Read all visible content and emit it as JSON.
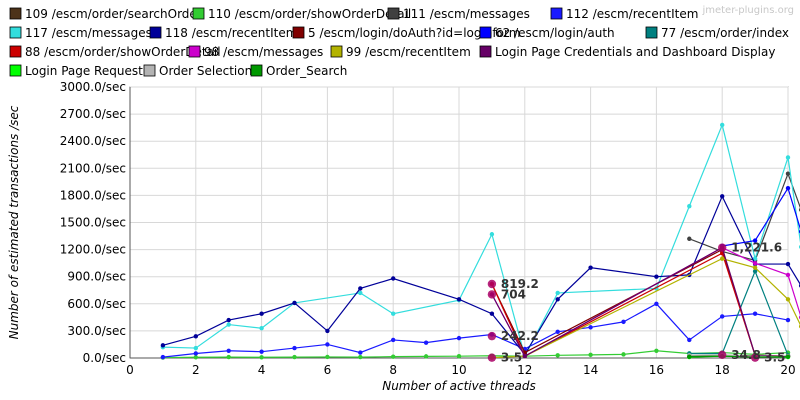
{
  "watermark": "jmeter-plugins.org",
  "chart_data": {
    "type": "line",
    "title": "",
    "xlabel": "Number of active threads",
    "ylabel": "Number of estimated transactions /sec",
    "xlim": [
      0,
      20
    ],
    "ylim": [
      0,
      3000
    ],
    "xticks": [
      0,
      2,
      4,
      6,
      8,
      10,
      12,
      14,
      16,
      18,
      20
    ],
    "xtick_labels": [
      "0",
      "2",
      "4",
      "6",
      "8",
      "10",
      "12",
      "14",
      "16",
      "18",
      "20"
    ],
    "yticks": [
      0,
      300,
      600,
      900,
      1200,
      1500,
      1800,
      2100,
      2400,
      2700,
      3000
    ],
    "ytick_labels": [
      "0.0/sec",
      "300.0/sec",
      "600.0/sec",
      "900.0/sec",
      "1200.0/sec",
      "1500.0/sec",
      "1800.0/sec",
      "2100.0/sec",
      "2400.0/sec",
      "2700.0/sec",
      "3000.0/sec"
    ],
    "grid": true,
    "legend_position": "top",
    "series": [
      {
        "name": "109 /escm/order/searchOrder",
        "color": "#4d3319",
        "points": [
          [
            17,
            20
          ],
          [
            18,
            30
          ],
          [
            19,
            25
          ],
          [
            20,
            20
          ]
        ]
      },
      {
        "name": "110 /escm/order/showOrderDetail",
        "color": "#33cc33",
        "points": [
          [
            1,
            5
          ],
          [
            2,
            8
          ],
          [
            3,
            10
          ],
          [
            4,
            8
          ],
          [
            5,
            10
          ],
          [
            6,
            12
          ],
          [
            7,
            10
          ],
          [
            8,
            15
          ],
          [
            9,
            18
          ],
          [
            10,
            20
          ],
          [
            11,
            25
          ],
          [
            12,
            20
          ],
          [
            13,
            30
          ],
          [
            14,
            35
          ],
          [
            15,
            40
          ],
          [
            16,
            80
          ],
          [
            17,
            50
          ],
          [
            18,
            60
          ],
          [
            19,
            40
          ],
          [
            20,
            60
          ]
        ]
      },
      {
        "name": "111 /escm/messages",
        "color": "#404040",
        "points": [
          [
            17,
            1320
          ],
          [
            18,
            1180
          ],
          [
            19,
            1080
          ],
          [
            20,
            2040
          ],
          [
            20.4,
            1640
          ]
        ]
      },
      {
        "name": "112 /escm/recentItem",
        "color": "#1a1aff",
        "points": [
          [
            1,
            10
          ],
          [
            2,
            50
          ],
          [
            3,
            80
          ],
          [
            4,
            70
          ],
          [
            5,
            110
          ],
          [
            6,
            150
          ],
          [
            7,
            60
          ],
          [
            8,
            200
          ],
          [
            9,
            170
          ],
          [
            10,
            220
          ],
          [
            11,
            260
          ],
          [
            12,
            100
          ],
          [
            13,
            290
          ],
          [
            14,
            340
          ],
          [
            15,
            400
          ],
          [
            16,
            600
          ],
          [
            17,
            200
          ],
          [
            18,
            460
          ],
          [
            19,
            490
          ],
          [
            20,
            420
          ]
        ]
      },
      {
        "name": "117 /escm/messages",
        "color": "#33dddd",
        "points": [
          [
            1,
            120
          ],
          [
            2,
            110
          ],
          [
            3,
            370
          ],
          [
            4,
            330
          ],
          [
            5,
            610
          ],
          [
            7,
            720
          ],
          [
            8,
            490
          ],
          [
            10,
            640
          ],
          [
            11,
            1370
          ],
          [
            12,
            20
          ],
          [
            13,
            720
          ],
          [
            16,
            770
          ],
          [
            17,
            1680
          ],
          [
            18,
            2580
          ],
          [
            19,
            1100
          ],
          [
            20,
            2220
          ],
          [
            20.4,
            1230
          ]
        ]
      },
      {
        "name": "118 /escm/recentItem",
        "color": "#000099",
        "points": [
          [
            1,
            140
          ],
          [
            2,
            240
          ],
          [
            3,
            420
          ],
          [
            4,
            490
          ],
          [
            5,
            610
          ],
          [
            6,
            300
          ],
          [
            7,
            770
          ],
          [
            8,
            880
          ],
          [
            10,
            650
          ],
          [
            11,
            490
          ],
          [
            12,
            40
          ],
          [
            13,
            650
          ],
          [
            14,
            1000
          ],
          [
            16,
            900
          ],
          [
            17,
            920
          ],
          [
            18,
            1790
          ],
          [
            19,
            1040
          ],
          [
            20,
            1040
          ],
          [
            20.4,
            800
          ]
        ]
      },
      {
        "name": "5 /escm/login/doAuth?id=loginform",
        "color": "#800000",
        "points": [
          [
            11,
            819.2
          ],
          [
            12,
            60
          ],
          [
            18,
            1200
          ],
          [
            19,
            30
          ],
          [
            20,
            20
          ]
        ]
      },
      {
        "name": "62 /escm/login/auth",
        "color": "#0000ff",
        "points": [
          [
            18,
            1240
          ],
          [
            19,
            1300
          ],
          [
            20,
            1880
          ],
          [
            20.4,
            1400
          ]
        ]
      },
      {
        "name": "77 /escm/order/index",
        "color": "#008080",
        "points": [
          [
            17,
            50
          ],
          [
            18,
            50
          ],
          [
            19,
            960
          ],
          [
            20,
            30
          ]
        ]
      },
      {
        "name": "88 /escm/order/showOrderDetail",
        "color": "#cc0000",
        "points": [
          [
            11,
            819.2
          ],
          [
            12,
            20
          ],
          [
            18,
            1160
          ],
          [
            19,
            30
          ],
          [
            20,
            20
          ]
        ]
      },
      {
        "name": "98 /escm/messages",
        "color": "#cc00cc",
        "points": [
          [
            11,
            704
          ],
          [
            12,
            20
          ],
          [
            18,
            1221.6
          ],
          [
            19,
            1050
          ],
          [
            20,
            920
          ],
          [
            20.4,
            450
          ]
        ]
      },
      {
        "name": "99 /escm/recentItem",
        "color": "#b3b300",
        "points": [
          [
            11,
            3.5
          ],
          [
            12,
            20
          ],
          [
            18,
            1100
          ],
          [
            19,
            1000
          ],
          [
            20,
            650
          ],
          [
            20.4,
            350
          ]
        ]
      },
      {
        "name": "Login Page Credentials and Dashboard Display",
        "color": "#660066",
        "points": [
          [
            11,
            704
          ],
          [
            12,
            20
          ],
          [
            18,
            1221.6
          ],
          [
            19,
            30
          ],
          [
            20,
            20
          ]
        ]
      },
      {
        "name": "Login Page Request",
        "color": "#00ff00",
        "points": [
          [
            17,
            10
          ],
          [
            18,
            20
          ],
          [
            19,
            15
          ],
          [
            20,
            10
          ]
        ]
      },
      {
        "name": "Order Selection",
        "color": "#b3b3b3",
        "points": [
          [
            17,
            30
          ],
          [
            18,
            34.8
          ],
          [
            19,
            20
          ],
          [
            20,
            20
          ]
        ]
      },
      {
        "name": "Order_Search",
        "color": "#009900",
        "points": [
          [
            17,
            15
          ],
          [
            18,
            20
          ],
          [
            19,
            10
          ],
          [
            20,
            15
          ]
        ]
      }
    ],
    "annotations": [
      {
        "text": "819.2",
        "x": 11,
        "y": 819.2
      },
      {
        "text": "704",
        "x": 11,
        "y": 704
      },
      {
        "text": "242.2",
        "x": 11,
        "y": 242.2
      },
      {
        "text": "3.5",
        "x": 11,
        "y": 3.5
      },
      {
        "text": "1,221.6",
        "x": 18,
        "y": 1221.6
      },
      {
        "text": "34.8",
        "x": 18,
        "y": 34.8
      },
      {
        "text": "3.5",
        "x": 19,
        "y": 3.5
      }
    ]
  }
}
